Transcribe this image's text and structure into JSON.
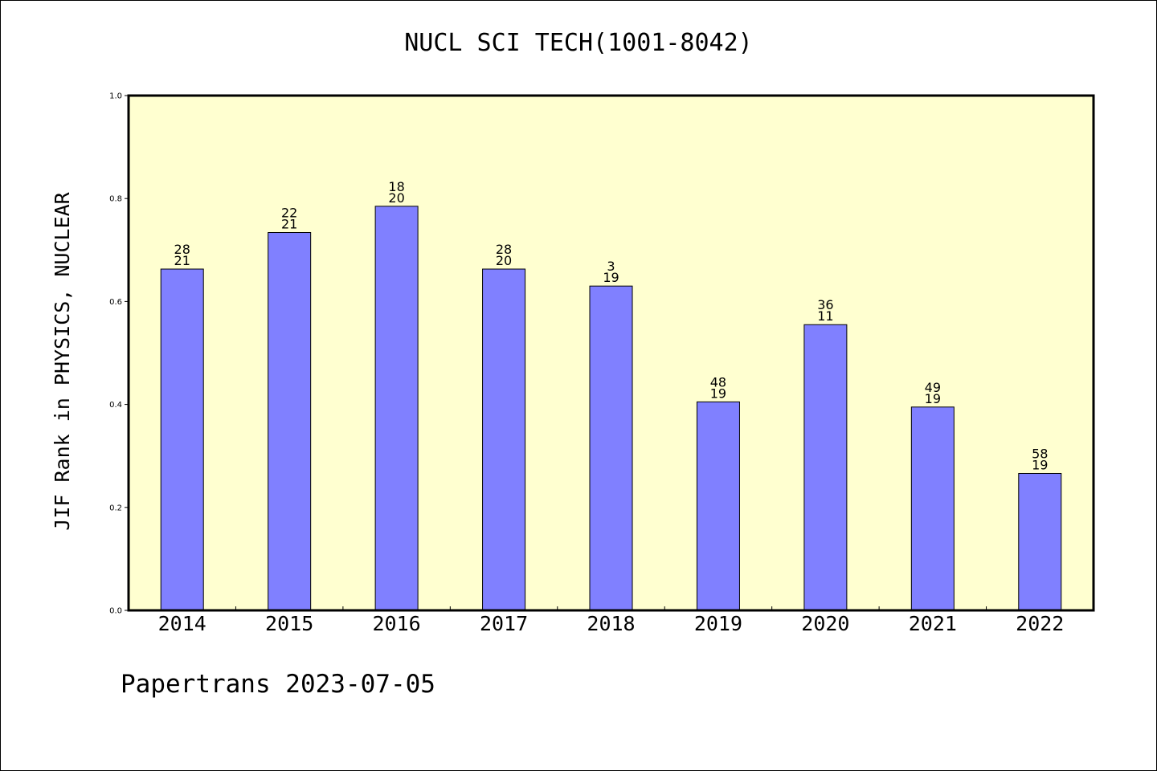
{
  "page": {
    "title": "NUCL SCI TECH(1001-8042)",
    "footer": "Papertrans 2023-07-05"
  },
  "chart_data": {
    "type": "bar",
    "title": "NUCL SCI TECH(1001-8042)",
    "xlabel": "",
    "ylabel": "JIF Rank in PHYSICS, NUCLEAR",
    "ylim": [
      0,
      1.0
    ],
    "yticks": [
      "0.0",
      "0.2",
      "0.4",
      "0.6",
      "0.8",
      "1.0"
    ],
    "grid": false,
    "categories": [
      "2014",
      "2015",
      "2016",
      "2017",
      "2018",
      "2019",
      "2020",
      "2021",
      "2022"
    ],
    "values": [
      0.663,
      0.734,
      0.785,
      0.663,
      0.63,
      0.405,
      0.555,
      0.395,
      0.266
    ],
    "annotations": [
      {
        "top": "28",
        "bottom": "21"
      },
      {
        "top": "22",
        "bottom": "21"
      },
      {
        "top": "18",
        "bottom": "20"
      },
      {
        "top": "28",
        "bottom": "20"
      },
      {
        "top": "3",
        "bottom": "19"
      },
      {
        "top": "48",
        "bottom": "19"
      },
      {
        "top": "36",
        "bottom": "11"
      },
      {
        "top": "49",
        "bottom": "19"
      },
      {
        "top": "58",
        "bottom": "19"
      }
    ],
    "colors": {
      "plot_background": "#ffffd0",
      "bar_fill": "#8080ff",
      "bar_stroke": "#000000"
    }
  }
}
